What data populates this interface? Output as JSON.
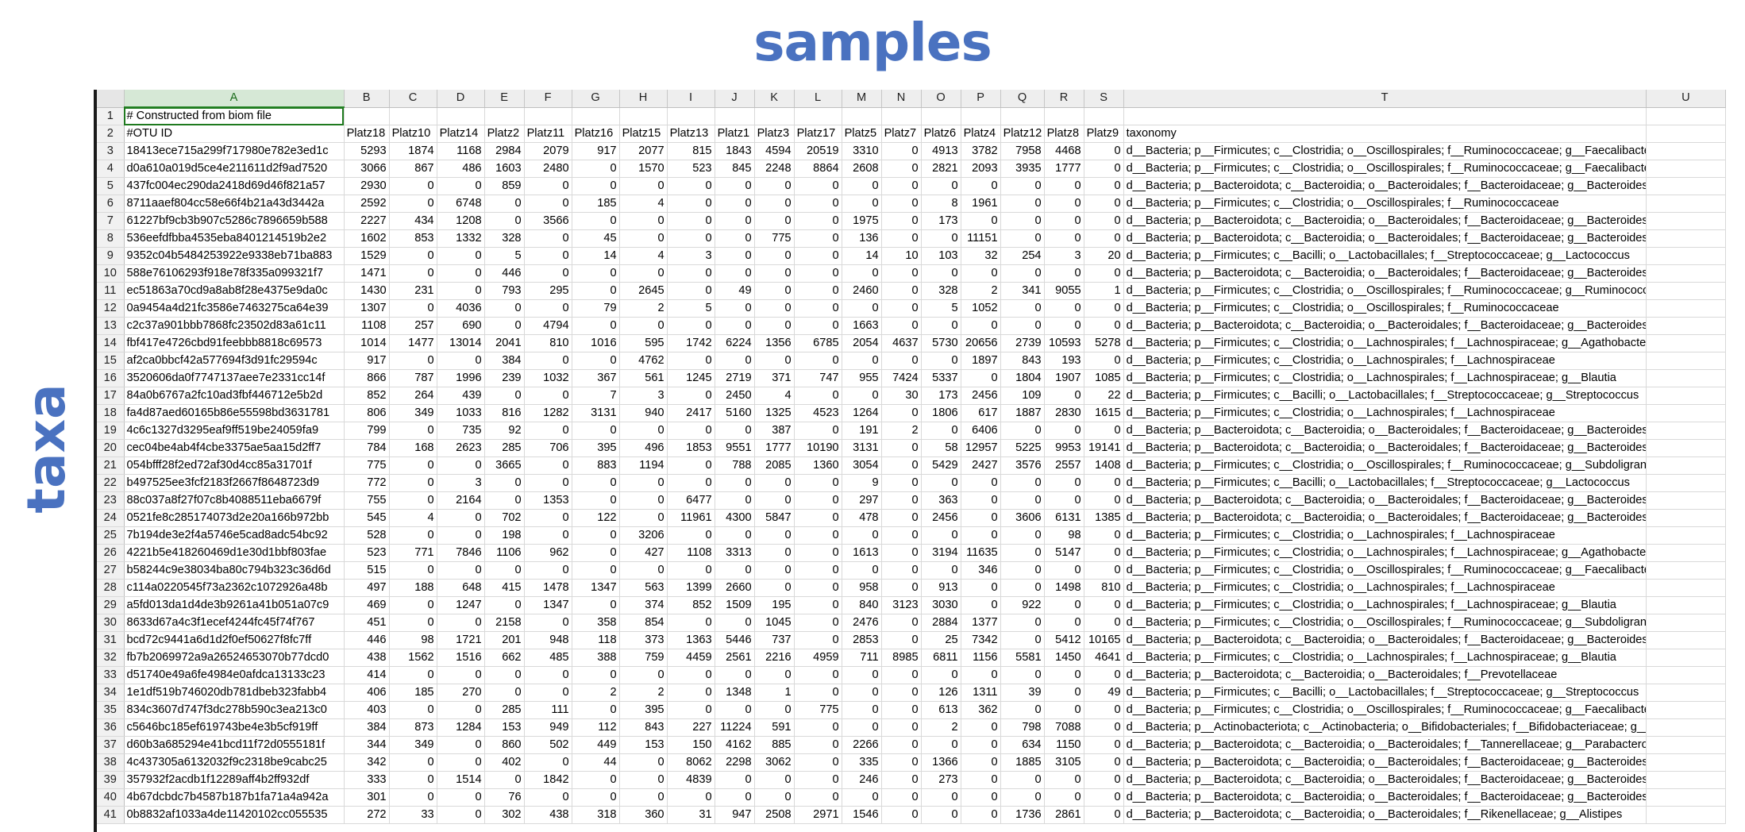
{
  "overlay": {
    "samples": "samples",
    "taxa": "taxa"
  },
  "columns": [
    "A",
    "B",
    "C",
    "D",
    "E",
    "F",
    "G",
    "H",
    "I",
    "J",
    "K",
    "L",
    "M",
    "N",
    "O",
    "P",
    "Q",
    "R",
    "S",
    "T",
    "U"
  ],
  "row1": {
    "num": "1",
    "text": "# Constructed from biom file"
  },
  "row2": {
    "num": "2",
    "cells": [
      "#OTU ID",
      "Platz18",
      "Platz10",
      "Platz14",
      "Platz2",
      "Platz11",
      "Platz16",
      "Platz15",
      "Platz13",
      "Platz1",
      "Platz3",
      "Platz17",
      "Platz5",
      "Platz7",
      "Platz6",
      "Platz4",
      "Platz12",
      "Platz8",
      "Platz9",
      "taxonomy",
      ""
    ]
  },
  "rows": [
    [
      "3",
      "18413ece715a299f717980e782e3ed1c",
      "5293",
      "1874",
      "1168",
      "2984",
      "2079",
      "917",
      "2077",
      "815",
      "1843",
      "4594",
      "20519",
      "3310",
      "0",
      "4913",
      "3782",
      "7958",
      "4468",
      "0",
      "d__Bacteria; p__Firmicutes; c__Clostridia; o__Oscillospirales; f__Ruminococcaceae; g__Faecalibacterium",
      ""
    ],
    [
      "4",
      "d0a610a019d5ce4e211611d2f9ad7520",
      "3066",
      "867",
      "486",
      "1603",
      "2480",
      "0",
      "1570",
      "523",
      "845",
      "2248",
      "8864",
      "2608",
      "0",
      "2821",
      "2093",
      "3935",
      "1777",
      "0",
      "d__Bacteria; p__Firmicutes; c__Clostridia; o__Oscillospirales; f__Ruminococcaceae; g__Faecalibacterium",
      ""
    ],
    [
      "5",
      "437fc004ec290da2418d69d46f821a57",
      "2930",
      "0",
      "0",
      "859",
      "0",
      "0",
      "0",
      "0",
      "0",
      "0",
      "0",
      "0",
      "0",
      "0",
      "0",
      "0",
      "0",
      "0",
      "d__Bacteria; p__Bacteroidota; c__Bacteroidia; o__Bacteroidales; f__Bacteroidaceae; g__Bacteroides",
      ""
    ],
    [
      "6",
      "8711aaef804cc58e66f4b21a43d3442a",
      "2592",
      "0",
      "6748",
      "0",
      "0",
      "185",
      "4",
      "0",
      "0",
      "0",
      "0",
      "0",
      "0",
      "8",
      "1961",
      "0",
      "0",
      "0",
      "d__Bacteria; p__Firmicutes; c__Clostridia; o__Oscillospirales; f__Ruminococcaceae",
      ""
    ],
    [
      "7",
      "61227bf9cb3b907c5286c7896659b588",
      "2227",
      "434",
      "1208",
      "0",
      "3566",
      "0",
      "0",
      "0",
      "0",
      "0",
      "0",
      "1975",
      "0",
      "173",
      "0",
      "0",
      "0",
      "0",
      "d__Bacteria; p__Bacteroidota; c__Bacteroidia; o__Bacteroidales; f__Bacteroidaceae; g__Bacteroides",
      ""
    ],
    [
      "8",
      "536eefdfbba4535eba8401214519b2e2",
      "1602",
      "853",
      "1332",
      "328",
      "0",
      "45",
      "0",
      "0",
      "0",
      "775",
      "0",
      "136",
      "0",
      "0",
      "11151",
      "0",
      "0",
      "0",
      "d__Bacteria; p__Bacteroidota; c__Bacteroidia; o__Bacteroidales; f__Bacteroidaceae; g__Bacteroides",
      ""
    ],
    [
      "9",
      "9352c04b5484253922e9338eb71ba883",
      "1529",
      "0",
      "0",
      "5",
      "0",
      "14",
      "4",
      "3",
      "0",
      "0",
      "0",
      "14",
      "10",
      "103",
      "32",
      "254",
      "3",
      "20",
      "d__Bacteria; p__Firmicutes; c__Bacilli; o__Lactobacillales; f__Streptococcaceae; g__Lactococcus",
      ""
    ],
    [
      "10",
      "588e76106293f918e78f335a099321f7",
      "1471",
      "0",
      "0",
      "446",
      "0",
      "0",
      "0",
      "0",
      "0",
      "0",
      "0",
      "0",
      "0",
      "0",
      "0",
      "0",
      "0",
      "0",
      "d__Bacteria; p__Bacteroidota; c__Bacteroidia; o__Bacteroidales; f__Bacteroidaceae; g__Bacteroides",
      ""
    ],
    [
      "11",
      "ec51863a70cd9a8ab8f28e4375e9da0c",
      "1430",
      "231",
      "0",
      "793",
      "295",
      "0",
      "2645",
      "0",
      "49",
      "0",
      "0",
      "2460",
      "0",
      "328",
      "2",
      "341",
      "9055",
      "1",
      "d__Bacteria; p__Firmicutes; c__Clostridia; o__Oscillospirales; f__Ruminococcaceae; g__Ruminococcus; s__Rum",
      ""
    ],
    [
      "12",
      "0a9454a4d21fc3586e7463275ca64e39",
      "1307",
      "0",
      "4036",
      "0",
      "0",
      "79",
      "2",
      "5",
      "0",
      "0",
      "0",
      "0",
      "0",
      "5",
      "1052",
      "0",
      "0",
      "0",
      "d__Bacteria; p__Firmicutes; c__Clostridia; o__Oscillospirales; f__Ruminococcaceae",
      ""
    ],
    [
      "13",
      "c2c37a901bbb7868fc23502d83a61c11",
      "1108",
      "257",
      "690",
      "0",
      "4794",
      "0",
      "0",
      "0",
      "0",
      "0",
      "0",
      "1663",
      "0",
      "0",
      "0",
      "0",
      "0",
      "0",
      "d__Bacteria; p__Bacteroidota; c__Bacteroidia; o__Bacteroidales; f__Bacteroidaceae; g__Bacteroides",
      ""
    ],
    [
      "14",
      "fbf417e4726cbd91feebbb8818c69573",
      "1014",
      "1477",
      "13014",
      "2041",
      "810",
      "1016",
      "595",
      "1742",
      "6224",
      "1356",
      "6785",
      "2054",
      "4637",
      "5730",
      "20656",
      "2739",
      "10593",
      "5278",
      "d__Bacteria; p__Firmicutes; c__Clostridia; o__Lachnospirales; f__Lachnospiraceae; g__Agathobacter",
      ""
    ],
    [
      "15",
      "af2ca0bbcf42a577694f3d91fc29594c",
      "917",
      "0",
      "0",
      "384",
      "0",
      "0",
      "4762",
      "0",
      "0",
      "0",
      "0",
      "0",
      "0",
      "0",
      "1897",
      "843",
      "193",
      "0",
      "d__Bacteria; p__Firmicutes; c__Clostridia; o__Lachnospirales; f__Lachnospiraceae",
      ""
    ],
    [
      "16",
      "3520606da0f7747137aee7e2331cc14f",
      "866",
      "787",
      "1996",
      "239",
      "1032",
      "367",
      "561",
      "1245",
      "2719",
      "371",
      "747",
      "955",
      "7424",
      "5337",
      "0",
      "1804",
      "1907",
      "1085",
      "d__Bacteria; p__Firmicutes; c__Clostridia; o__Lachnospirales; f__Lachnospiraceae; g__Blautia",
      ""
    ],
    [
      "17",
      "84a0b6767a2fc10ad3fbf446712e5b2d",
      "852",
      "264",
      "439",
      "0",
      "0",
      "7",
      "3",
      "0",
      "2450",
      "4",
      "0",
      "0",
      "30",
      "173",
      "2456",
      "109",
      "0",
      "22",
      "d__Bacteria; p__Firmicutes; c__Bacilli; o__Lactobacillales; f__Streptococcaceae; g__Streptococcus",
      ""
    ],
    [
      "18",
      "fa4d87aed60165b86e55598bd3631781",
      "806",
      "349",
      "1033",
      "816",
      "1282",
      "3131",
      "940",
      "2417",
      "5160",
      "1325",
      "4523",
      "1264",
      "0",
      "1806",
      "617",
      "1887",
      "2830",
      "1615",
      "d__Bacteria; p__Firmicutes; c__Clostridia; o__Lachnospirales; f__Lachnospiraceae",
      ""
    ],
    [
      "19",
      "4c6c1327d3295eaf9ff519be24059fa9",
      "799",
      "0",
      "735",
      "92",
      "0",
      "0",
      "0",
      "0",
      "0",
      "387",
      "0",
      "191",
      "2",
      "0",
      "6406",
      "0",
      "0",
      "0",
      "d__Bacteria; p__Bacteroidota; c__Bacteroidia; o__Bacteroidales; f__Bacteroidaceae; g__Bacteroides",
      ""
    ],
    [
      "20",
      "cec04be4ab4f4cbe3375ae5aa15d2ff7",
      "784",
      "168",
      "2623",
      "285",
      "706",
      "395",
      "496",
      "1853",
      "9551",
      "1777",
      "10190",
      "3131",
      "0",
      "58",
      "12957",
      "5225",
      "9953",
      "19141",
      "d__Bacteria; p__Bacteroidota; c__Bacteroidia; o__Bacteroidales; f__Bacteroidaceae; g__Bacteroides",
      ""
    ],
    [
      "21",
      "054bfff28f2ed72af30d4cc85a31701f",
      "775",
      "0",
      "0",
      "3665",
      "0",
      "883",
      "1194",
      "0",
      "788",
      "2085",
      "1360",
      "3054",
      "0",
      "5429",
      "2427",
      "3576",
      "2557",
      "1408",
      "d__Bacteria; p__Firmicutes; c__Clostridia; o__Oscillospirales; f__Ruminococcaceae; g__Subdoligranulum",
      ""
    ],
    [
      "22",
      "b497525ee3fcf2183f2667f8648723d9",
      "772",
      "0",
      "3",
      "0",
      "0",
      "0",
      "0",
      "0",
      "0",
      "0",
      "0",
      "9",
      "0",
      "0",
      "0",
      "0",
      "0",
      "0",
      "d__Bacteria; p__Firmicutes; c__Bacilli; o__Lactobacillales; f__Streptococcaceae; g__Lactococcus",
      ""
    ],
    [
      "23",
      "88c037a8f27f07c8b4088511eba6679f",
      "755",
      "0",
      "2164",
      "0",
      "1353",
      "0",
      "0",
      "6477",
      "0",
      "0",
      "0",
      "297",
      "0",
      "363",
      "0",
      "0",
      "0",
      "0",
      "d__Bacteria; p__Bacteroidota; c__Bacteroidia; o__Bacteroidales; f__Bacteroidaceae; g__Bacteroides",
      ""
    ],
    [
      "24",
      "0521fe8c285174073d2e20a166b972bb",
      "545",
      "4",
      "0",
      "702",
      "0",
      "122",
      "0",
      "11961",
      "4300",
      "5847",
      "0",
      "478",
      "0",
      "2456",
      "0",
      "3606",
      "6131",
      "1385",
      "d__Bacteria; p__Bacteroidota; c__Bacteroidia; o__Bacteroidales; f__Bacteroidaceae; g__Bacteroides",
      ""
    ],
    [
      "25",
      "7b194de3e2f4a5746e5cad8adc54bc92",
      "528",
      "0",
      "0",
      "198",
      "0",
      "0",
      "3206",
      "0",
      "0",
      "0",
      "0",
      "0",
      "0",
      "0",
      "0",
      "0",
      "98",
      "0",
      "d__Bacteria; p__Firmicutes; c__Clostridia; o__Lachnospirales; f__Lachnospiraceae",
      ""
    ],
    [
      "26",
      "4221b5e418260469d1e30d1bbf803fae",
      "523",
      "771",
      "7846",
      "1106",
      "962",
      "0",
      "427",
      "1108",
      "3313",
      "0",
      "0",
      "1613",
      "0",
      "3194",
      "11635",
      "0",
      "5147",
      "0",
      "d__Bacteria; p__Firmicutes; c__Clostridia; o__Lachnospirales; f__Lachnospiraceae; g__Agathobacter",
      ""
    ],
    [
      "27",
      "b58244c9e38034ba80c794b323c36d6d",
      "515",
      "0",
      "0",
      "0",
      "0",
      "0",
      "0",
      "0",
      "0",
      "0",
      "0",
      "0",
      "0",
      "0",
      "346",
      "0",
      "0",
      "0",
      "d__Bacteria; p__Firmicutes; c__Clostridia; o__Oscillospirales; f__Ruminococcaceae; g__Faecalibacterium",
      ""
    ],
    [
      "28",
      "c114a0220545f73a2362c1072926a48b",
      "497",
      "188",
      "648",
      "415",
      "1478",
      "1347",
      "563",
      "1399",
      "2660",
      "0",
      "0",
      "958",
      "0",
      "913",
      "0",
      "0",
      "1498",
      "810",
      "d__Bacteria; p__Firmicutes; c__Clostridia; o__Lachnospirales; f__Lachnospiraceae",
      ""
    ],
    [
      "29",
      "a5fd013da1d4de3b9261a41b051a07c9",
      "469",
      "0",
      "1247",
      "0",
      "1347",
      "0",
      "374",
      "852",
      "1509",
      "195",
      "0",
      "840",
      "3123",
      "3030",
      "0",
      "922",
      "0",
      "0",
      "d__Bacteria; p__Firmicutes; c__Clostridia; o__Lachnospirales; f__Lachnospiraceae; g__Blautia",
      ""
    ],
    [
      "30",
      "8633d67a4c3f1ecef4244fc45f74f767",
      "451",
      "0",
      "0",
      "2158",
      "0",
      "358",
      "854",
      "0",
      "0",
      "1045",
      "0",
      "2476",
      "0",
      "2884",
      "1377",
      "0",
      "0",
      "0",
      "d__Bacteria; p__Firmicutes; c__Clostridia; o__Oscillospirales; f__Ruminococcaceae; g__Subdoligranulum",
      ""
    ],
    [
      "31",
      "bcd72c9441a6d1d2f0ef50627f8fc7ff",
      "446",
      "98",
      "1721",
      "201",
      "948",
      "118",
      "373",
      "1363",
      "5446",
      "737",
      "0",
      "2853",
      "0",
      "25",
      "7342",
      "0",
      "5412",
      "10165",
      "d__Bacteria; p__Bacteroidota; c__Bacteroidia; o__Bacteroidales; f__Bacteroidaceae; g__Bacteroides",
      ""
    ],
    [
      "32",
      "fb7b2069972a9a26524653070b77dcd0",
      "438",
      "1562",
      "1516",
      "662",
      "485",
      "388",
      "759",
      "4459",
      "2561",
      "2216",
      "4959",
      "711",
      "8985",
      "6811",
      "1156",
      "5581",
      "1450",
      "4641",
      "d__Bacteria; p__Firmicutes; c__Clostridia; o__Lachnospirales; f__Lachnospiraceae; g__Blautia",
      ""
    ],
    [
      "33",
      "d51740e49a6fe4984e0afdca13133c23",
      "414",
      "0",
      "0",
      "0",
      "0",
      "0",
      "0",
      "0",
      "0",
      "0",
      "0",
      "0",
      "0",
      "0",
      "0",
      "0",
      "0",
      "0",
      "d__Bacteria; p__Bacteroidota; c__Bacteroidia; o__Bacteroidales; f__Prevotellaceae",
      ""
    ],
    [
      "34",
      "1e1df519b746020db781dbeb323fabb4",
      "406",
      "185",
      "270",
      "0",
      "0",
      "2",
      "2",
      "0",
      "1348",
      "1",
      "0",
      "0",
      "0",
      "126",
      "1311",
      "39",
      "0",
      "49",
      "d__Bacteria; p__Firmicutes; c__Bacilli; o__Lactobacillales; f__Streptococcaceae; g__Streptococcus",
      ""
    ],
    [
      "35",
      "834c3607d747f3dc278b590c3ea213c0",
      "403",
      "0",
      "0",
      "285",
      "111",
      "0",
      "395",
      "0",
      "0",
      "0",
      "775",
      "0",
      "0",
      "613",
      "362",
      "0",
      "0",
      "0",
      "d__Bacteria; p__Firmicutes; c__Clostridia; o__Oscillospirales; f__Ruminococcaceae; g__Faecalibacterium",
      ""
    ],
    [
      "36",
      "c5646bc185ef619743be4e3b5cf919ff",
      "384",
      "873",
      "1284",
      "153",
      "949",
      "112",
      "843",
      "227",
      "11224",
      "591",
      "0",
      "0",
      "0",
      "2",
      "0",
      "798",
      "7088",
      "0",
      "d__Bacteria; p__Actinobacteriota; c__Actinobacteria; o__Bifidobacteriales; f__Bifidobacteriaceae; g__Bifidobac",
      ""
    ],
    [
      "37",
      "d60b3a685294e41bcd11f72d0555181f",
      "344",
      "349",
      "0",
      "860",
      "502",
      "449",
      "153",
      "150",
      "4162",
      "885",
      "0",
      "2266",
      "0",
      "0",
      "0",
      "634",
      "1150",
      "0",
      "d__Bacteria; p__Bacteroidota; c__Bacteroidia; o__Bacteroidales; f__Tannerellaceae; g__Parabacteroides; s__Pa",
      ""
    ],
    [
      "38",
      "4c437305a6132032f9c2318be9cabc25",
      "342",
      "0",
      "0",
      "402",
      "0",
      "44",
      "0",
      "8062",
      "2298",
      "3062",
      "0",
      "335",
      "0",
      "1366",
      "0",
      "1885",
      "3105",
      "0",
      "d__Bacteria; p__Bacteroidota; c__Bacteroidia; o__Bacteroidales; f__Bacteroidaceae; g__Bacteroides",
      ""
    ],
    [
      "39",
      "357932f2acdb1f12289aff4b2ff932df",
      "333",
      "0",
      "1514",
      "0",
      "1842",
      "0",
      "0",
      "4839",
      "0",
      "0",
      "0",
      "246",
      "0",
      "273",
      "0",
      "0",
      "0",
      "0",
      "d__Bacteria; p__Bacteroidota; c__Bacteroidia; o__Bacteroidales; f__Bacteroidaceae; g__Bacteroides",
      ""
    ],
    [
      "40",
      "4b67dcbdc7b4587b187b1fa71a4a942a",
      "301",
      "0",
      "0",
      "76",
      "0",
      "0",
      "0",
      "0",
      "0",
      "0",
      "0",
      "0",
      "0",
      "0",
      "0",
      "0",
      "0",
      "0",
      "d__Bacteria; p__Bacteroidota; c__Bacteroidia; o__Bacteroidales; f__Bacteroidaceae; g__Bacteroides",
      ""
    ],
    [
      "41",
      "0b8832af1033a4de11420102cc055535",
      "272",
      "33",
      "0",
      "302",
      "438",
      "318",
      "360",
      "31",
      "947",
      "2508",
      "2971",
      "1546",
      "0",
      "0",
      "0",
      "1736",
      "2861",
      "0",
      "d__Bacteria; p__Bacteroidota; c__Bacteroidia; o__Bacteroidales; f__Rikenellaceae; g__Alistipes",
      ""
    ]
  ]
}
